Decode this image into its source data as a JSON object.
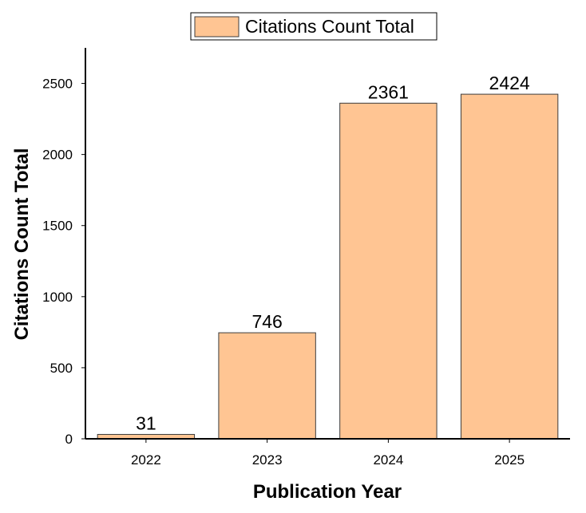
{
  "chart_data": {
    "type": "bar",
    "categories": [
      "2022",
      "2023",
      "2024",
      "2025"
    ],
    "series": [
      {
        "name": "Citations Count Total",
        "values": [
          31,
          746,
          2361,
          2424
        ]
      }
    ],
    "data_labels": [
      "31",
      "746",
      "2361",
      "2424"
    ],
    "xlabel": "Publication Year",
    "ylabel": "Citations Count Total",
    "ylim": [
      0,
      2750
    ],
    "yticks": [
      0,
      500,
      1000,
      1500,
      2000,
      2500
    ],
    "ytick_labels": [
      "0",
      "500",
      "1000",
      "1500",
      "2000",
      "2500"
    ],
    "legend": {
      "label": "Citations Count Total",
      "position": "top-center"
    },
    "grid": false,
    "colors": {
      "bar_fill": "#ffc593",
      "bar_stroke": "#3c3c3c",
      "axis": "#000000"
    }
  }
}
